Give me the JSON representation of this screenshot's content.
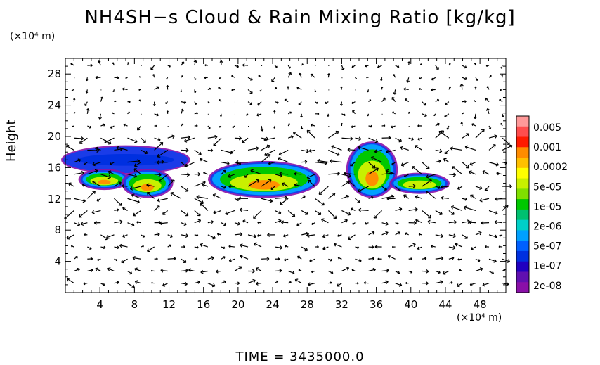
{
  "chart_data": {
    "type": "heatmap",
    "title": "NH4SH−s Cloud & Rain Mixing Ratio [kg/kg]",
    "ylabel": "Height",
    "y_unit": "(×10⁴ m)",
    "x_unit": "(×10⁴ m)",
    "xlim": [
      0,
      51
    ],
    "ylim": [
      0,
      30
    ],
    "x_ticks": [
      4,
      8,
      12,
      16,
      20,
      24,
      28,
      32,
      36,
      40,
      44,
      48
    ],
    "y_ticks": [
      4,
      8,
      12,
      16,
      20,
      24,
      28
    ],
    "colorbar": {
      "labels": [
        "0.005",
        "0.001",
        "0.0002",
        "5e-05",
        "1e-05",
        "2e-06",
        "5e-07",
        "1e-07",
        "2e-08"
      ],
      "colors": [
        "#ff9999",
        "#ff4d4d",
        "#ff1a00",
        "#ff8c00",
        "#ffc000",
        "#ffff00",
        "#c8f000",
        "#80e000",
        "#00c800",
        "#00c070",
        "#00d0c8",
        "#00a0ff",
        "#0060ff",
        "#0030e0",
        "#2000c0",
        "#6010b0",
        "#8a10a8"
      ]
    },
    "regions": [
      {
        "x0": 0,
        "x1": 14,
        "y0": 15.5,
        "y1": 18.5,
        "value": "1e-07"
      },
      {
        "x0": 2,
        "x1": 7,
        "y0": 13.5,
        "y1": 15.5,
        "value": "5e-05"
      },
      {
        "x0": 7,
        "x1": 12,
        "y0": 12.5,
        "y1": 15.5,
        "value": "0.0002"
      },
      {
        "x0": 17,
        "x1": 29,
        "y0": 12.5,
        "y1": 16.5,
        "value": "5e-05"
      },
      {
        "x0": 33,
        "x1": 38,
        "y0": 12.5,
        "y1": 19.0,
        "value": "5e-05"
      },
      {
        "x0": 38,
        "x1": 44,
        "y0": 13.0,
        "y1": 15.0,
        "value": "1e-05"
      }
    ],
    "time_label": "TIME  =  3435000.0"
  }
}
